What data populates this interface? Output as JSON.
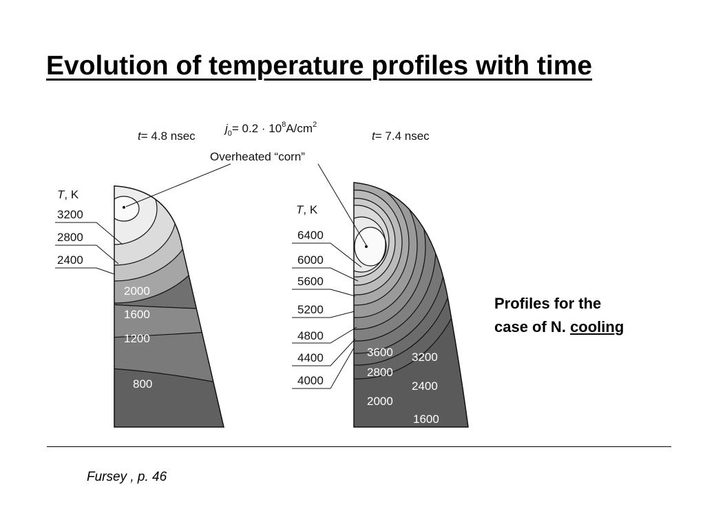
{
  "slide": {
    "title": "Evolution of temperature profiles with time",
    "side_note": {
      "line1": "Profiles for the",
      "line2_prefix": "case of N.",
      "line2_underlined": "cooling"
    },
    "source": "Fursey , p. 46"
  },
  "figure": {
    "current_density": {
      "symbol": "j",
      "subscript": "0",
      "value": "= 0.2 · 10",
      "exponent": "8",
      "unit": "A/cm",
      "unit_exp": "2"
    },
    "corn_label": "Overheated “corn”",
    "left_panel": {
      "time_symbol": "t",
      "time_text": "= 4.8 nsec",
      "axis_symbol": "T",
      "axis_unit": ", K",
      "outside_labels": [
        "3200",
        "2800",
        "2400"
      ],
      "inside_labels": [
        "2000",
        "1600",
        "1200",
        "800"
      ]
    },
    "right_panel": {
      "time_symbol": "t",
      "time_text": "= 7.4 nsec",
      "axis_symbol": "T",
      "axis_unit": ", K",
      "outside_labels": [
        "6400",
        "6000",
        "5600",
        "5200",
        "4800",
        "4400",
        "4000"
      ],
      "inside_labels": [
        "3600",
        "3200",
        "2800",
        "2400",
        "2000",
        "1600"
      ]
    }
  }
}
